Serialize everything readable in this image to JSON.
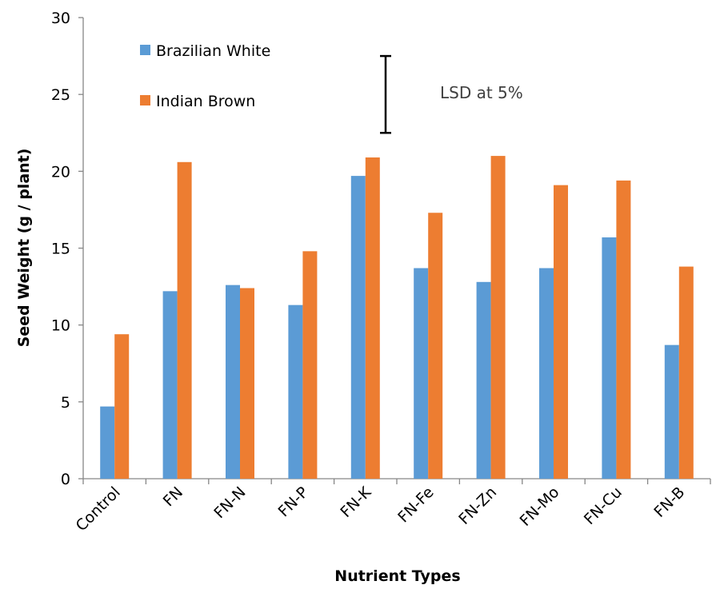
{
  "chart_data": {
    "type": "bar",
    "xlabel": "Nutrient Types",
    "ylabel": "Seed Weight (g / plant)",
    "ylim": [
      0,
      30
    ],
    "yticks": [
      0,
      5,
      10,
      15,
      20,
      25,
      30
    ],
    "grid": false,
    "legend_position": "top-left",
    "categories": [
      "Control",
      "FN",
      "FN-N",
      "FN-P",
      "FN-K",
      "FN-Fe",
      "FN-Zn",
      "FN-Mo",
      "FN-Cu",
      "FN-B"
    ],
    "series": [
      {
        "name": "Brazilian White",
        "color": "#5B9BD5",
        "values": [
          4.7,
          12.2,
          12.6,
          11.3,
          19.7,
          13.7,
          12.8,
          13.7,
          15.7,
          8.7
        ]
      },
      {
        "name": "Indian Brown",
        "color": "#ED7D31",
        "values": [
          9.4,
          20.6,
          12.4,
          14.8,
          20.9,
          17.3,
          21.0,
          19.1,
          19.4,
          13.8
        ]
      }
    ],
    "annotation": {
      "text": "LSD at 5%",
      "lsd_low": 22.5,
      "lsd_high": 27.5
    }
  }
}
